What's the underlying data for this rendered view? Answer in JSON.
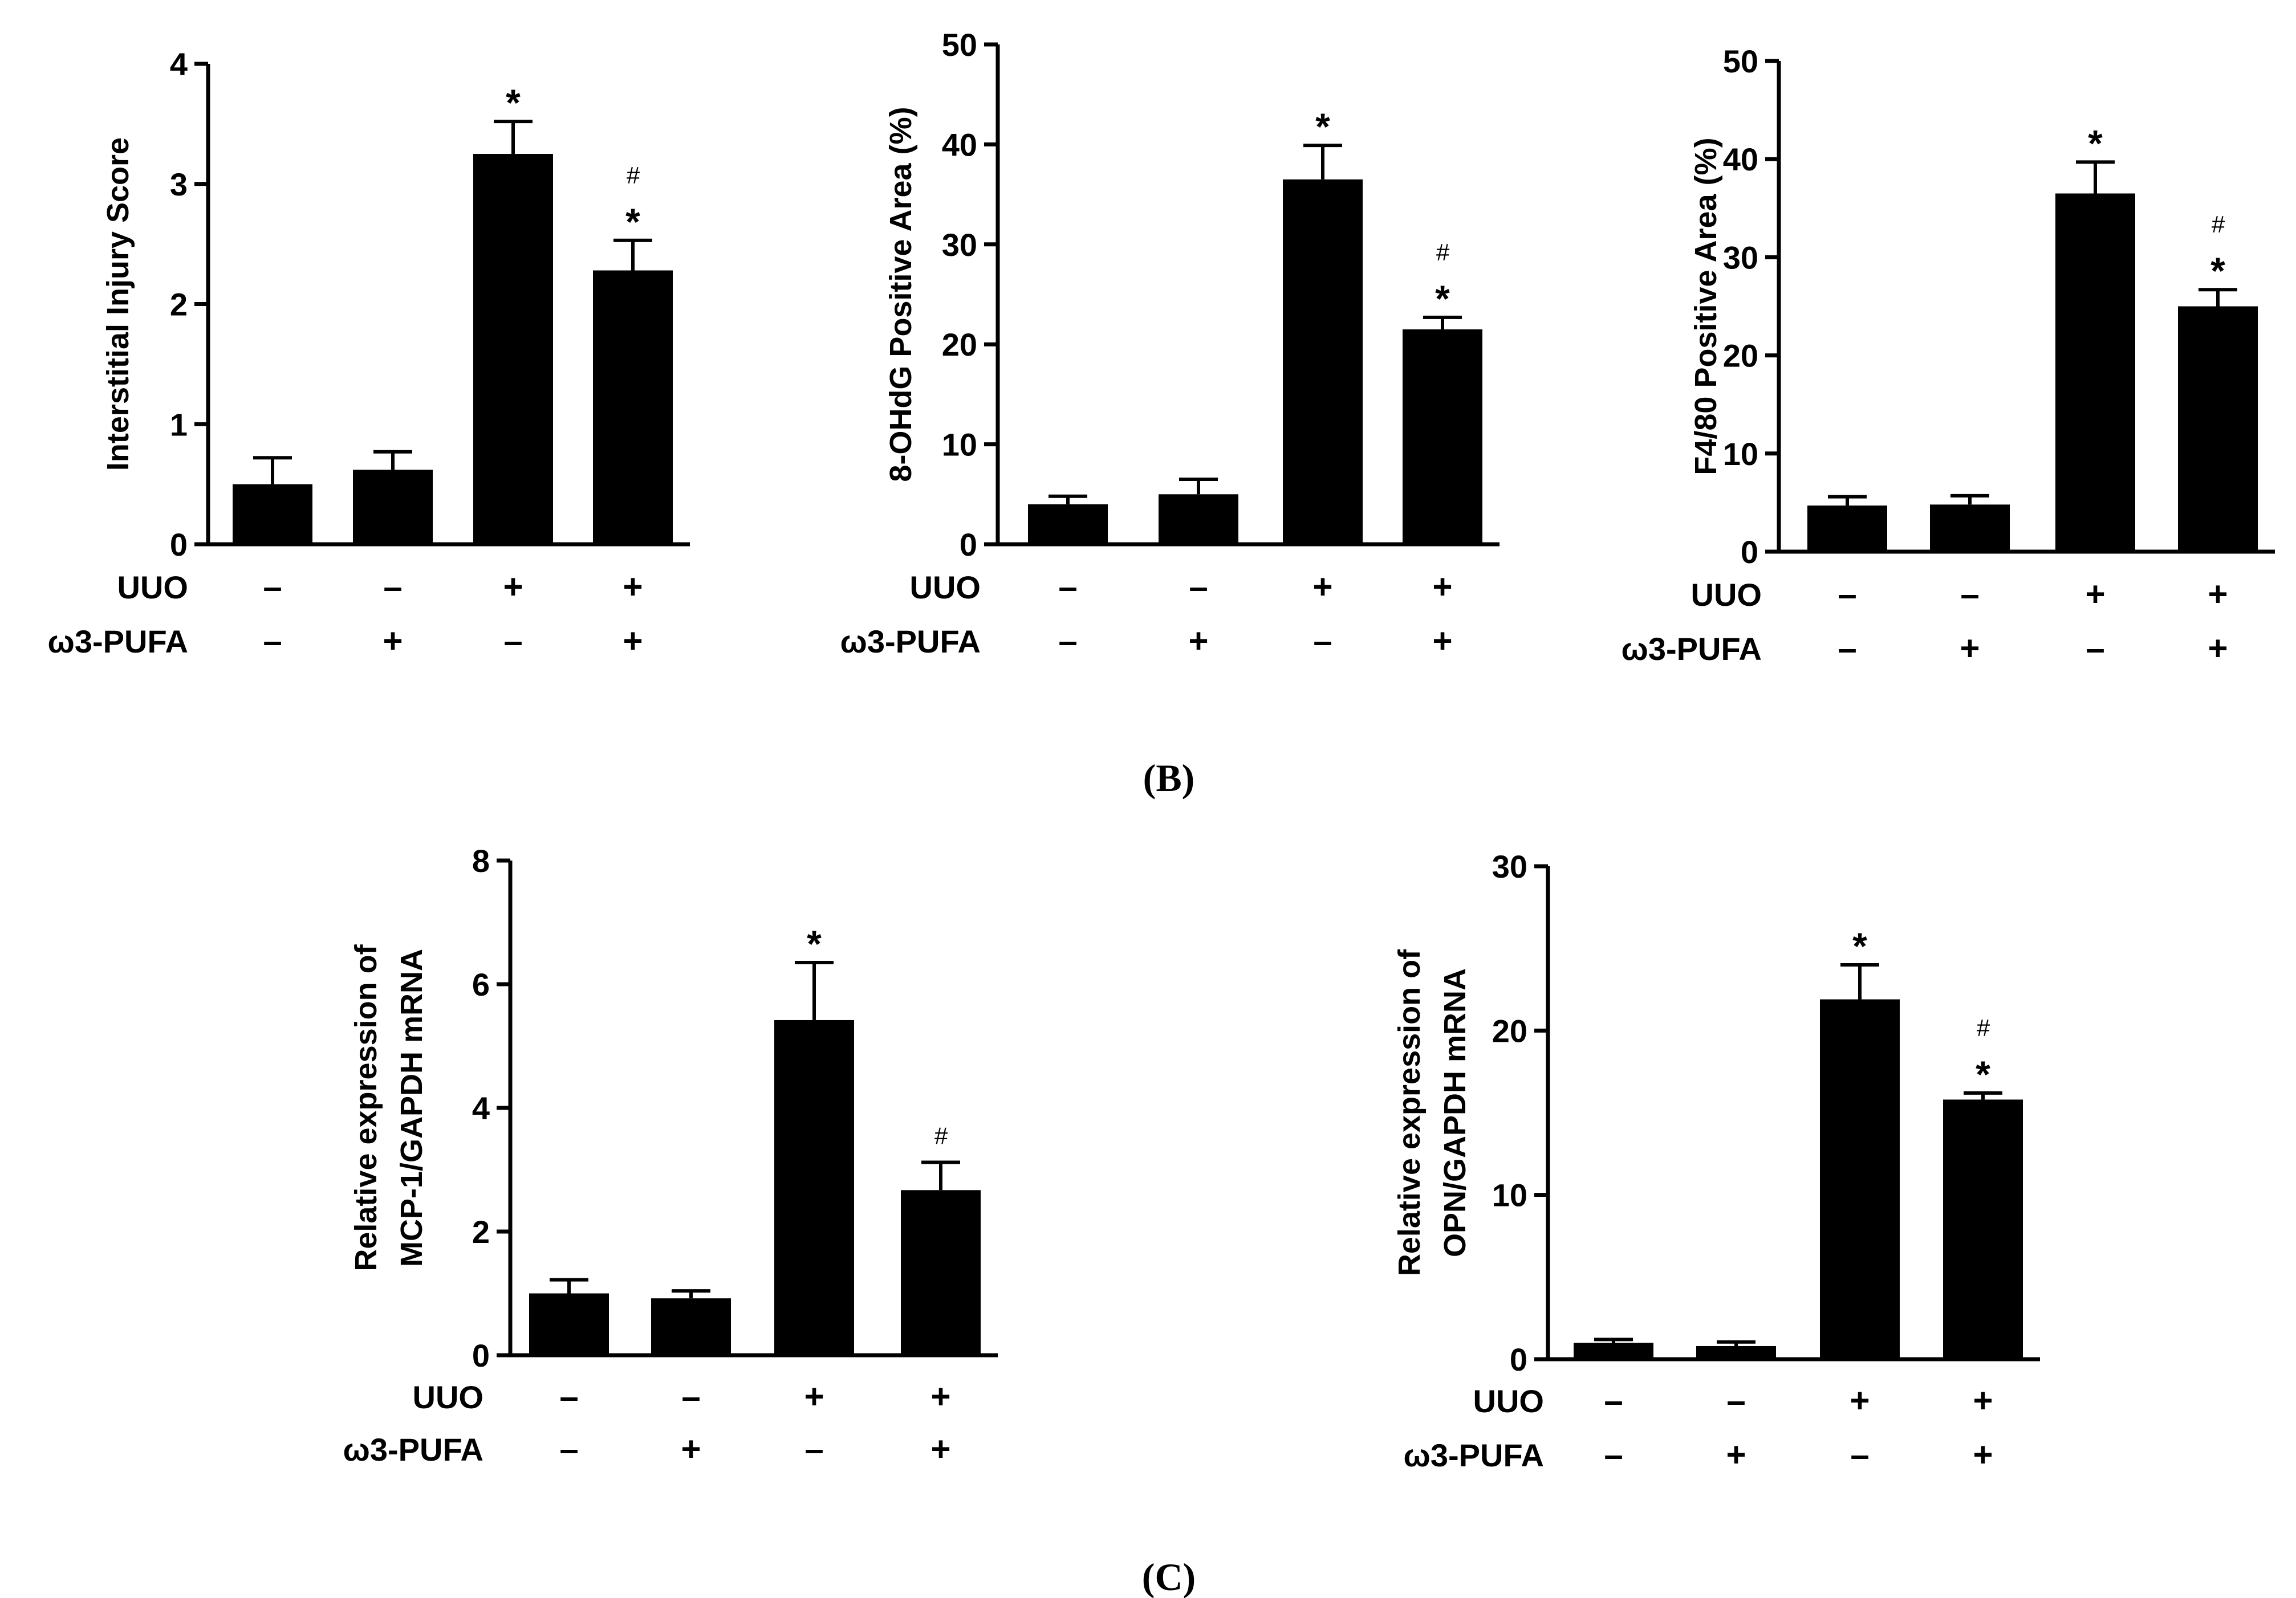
{
  "row_labels": [
    "UUO",
    "ω3-PUFA"
  ],
  "condition_signs": [
    [
      "–",
      "–",
      "+",
      "+"
    ],
    [
      "–",
      "+",
      "–",
      "+"
    ]
  ],
  "panel_labels": {
    "B": "(B)",
    "C": "(C)"
  },
  "colors": {
    "bar": "#000000",
    "axis": "#000000",
    "background": "#ffffff"
  },
  "chart_data": [
    {
      "type": "bar",
      "ylabel_lines": [
        "Interstitial Injury Score"
      ],
      "ylim": [
        0,
        4
      ],
      "yticks": [
        0,
        1,
        2,
        3,
        4
      ],
      "values": [
        0.5,
        0.62,
        3.25,
        2.28
      ],
      "errors": [
        0.22,
        0.15,
        0.27,
        0.25
      ],
      "annotations": [
        [],
        [],
        [
          "*"
        ],
        [
          "#",
          "*"
        ]
      ]
    },
    {
      "type": "bar",
      "ylabel_lines": [
        "8-OHdG Positive Area (%)"
      ],
      "ylim": [
        0,
        50
      ],
      "yticks": [
        0,
        10,
        20,
        30,
        40,
        50
      ],
      "values": [
        4,
        5,
        36.5,
        21.5
      ],
      "errors": [
        0.8,
        1.5,
        3.4,
        1.2
      ],
      "annotations": [
        [],
        [],
        [
          "*"
        ],
        [
          "#",
          "*"
        ]
      ]
    },
    {
      "type": "bar",
      "ylabel_lines": [
        "F4/80 Positive Area (%)"
      ],
      "ylim": [
        0,
        50
      ],
      "yticks": [
        0,
        10,
        20,
        30,
        40,
        50
      ],
      "values": [
        4.7,
        4.8,
        36.5,
        25
      ],
      "errors": [
        0.9,
        0.9,
        3.2,
        1.7
      ],
      "annotations": [
        [],
        [],
        [
          "*"
        ],
        [
          "#",
          "*"
        ]
      ]
    },
    {
      "type": "bar",
      "ylabel_lines": [
        "Relative expression of",
        "MCP-1/GAPDH mRNA"
      ],
      "ylim": [
        0,
        8
      ],
      "yticks": [
        0,
        2,
        4,
        6,
        8
      ],
      "values": [
        1,
        0.92,
        5.42,
        2.67
      ],
      "errors": [
        0.22,
        0.12,
        0.93,
        0.45
      ],
      "annotations": [
        [],
        [],
        [
          "*"
        ],
        [
          "#"
        ]
      ]
    },
    {
      "type": "bar",
      "ylabel_lines": [
        "Relative expression of",
        "OPN/GAPDH mRNA"
      ],
      "ylim": [
        0,
        30
      ],
      "yticks": [
        0,
        10,
        20,
        30
      ],
      "values": [
        1,
        0.8,
        21.9,
        15.8
      ],
      "errors": [
        0.2,
        0.25,
        2.1,
        0.4
      ],
      "annotations": [
        [],
        [],
        [
          "*"
        ],
        [
          "#",
          "*"
        ]
      ]
    }
  ]
}
